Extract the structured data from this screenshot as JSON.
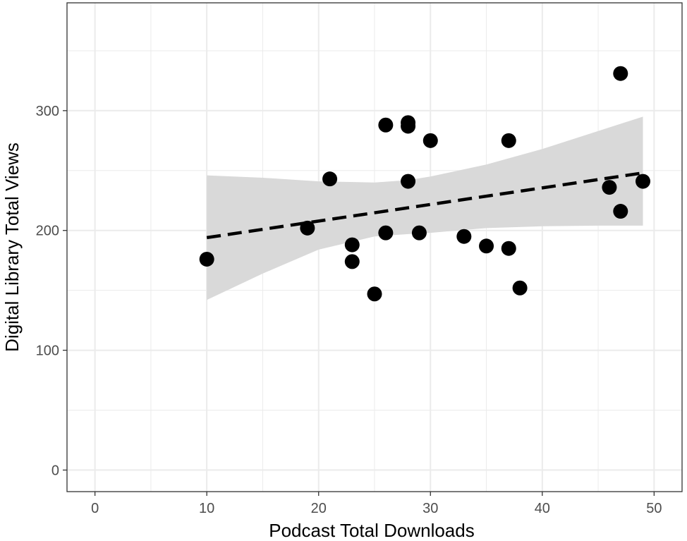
{
  "chart_data": {
    "type": "scatter",
    "title": "",
    "xlabel": "Podcast Total Downloads",
    "ylabel": "Digital Library Total Views",
    "xlim": [
      -2.5,
      52.5
    ],
    "ylim": [
      -18,
      390
    ],
    "x_ticks": [
      "0",
      "10",
      "20",
      "30",
      "40",
      "50"
    ],
    "y_ticks": [
      "0",
      "100",
      "200",
      "300"
    ],
    "grid": true,
    "legend": "none",
    "points": [
      {
        "x": 10,
        "y": 176
      },
      {
        "x": 19,
        "y": 202
      },
      {
        "x": 21,
        "y": 243
      },
      {
        "x": 23,
        "y": 188
      },
      {
        "x": 23,
        "y": 174
      },
      {
        "x": 25,
        "y": 147
      },
      {
        "x": 26,
        "y": 288
      },
      {
        "x": 26,
        "y": 198
      },
      {
        "x": 28,
        "y": 290
      },
      {
        "x": 28,
        "y": 287
      },
      {
        "x": 28,
        "y": 241
      },
      {
        "x": 29,
        "y": 198
      },
      {
        "x": 30,
        "y": 275
      },
      {
        "x": 33,
        "y": 195
      },
      {
        "x": 35,
        "y": 187
      },
      {
        "x": 37,
        "y": 275
      },
      {
        "x": 37,
        "y": 185
      },
      {
        "x": 38,
        "y": 152
      },
      {
        "x": 46,
        "y": 236
      },
      {
        "x": 47,
        "y": 331
      },
      {
        "x": 47,
        "y": 216
      },
      {
        "x": 49,
        "y": 241
      }
    ],
    "trend_line": {
      "style": "dashed",
      "x": [
        10,
        49
      ],
      "y": [
        194,
        248
      ]
    },
    "confidence_band": {
      "x": [
        10,
        15,
        20,
        25,
        28,
        30,
        35,
        40,
        45,
        49
      ],
      "lower": [
        142,
        164,
        184,
        195,
        197,
        198,
        202,
        203.5,
        204,
        204
      ],
      "upper": [
        246,
        244,
        241,
        240,
        242,
        245,
        255,
        268,
        283,
        295
      ]
    },
    "colors": {
      "points": "#000000",
      "band": "#d9d9d9",
      "line": "#000000",
      "grid": "#ebebeb",
      "panel_border": "#333333"
    }
  }
}
